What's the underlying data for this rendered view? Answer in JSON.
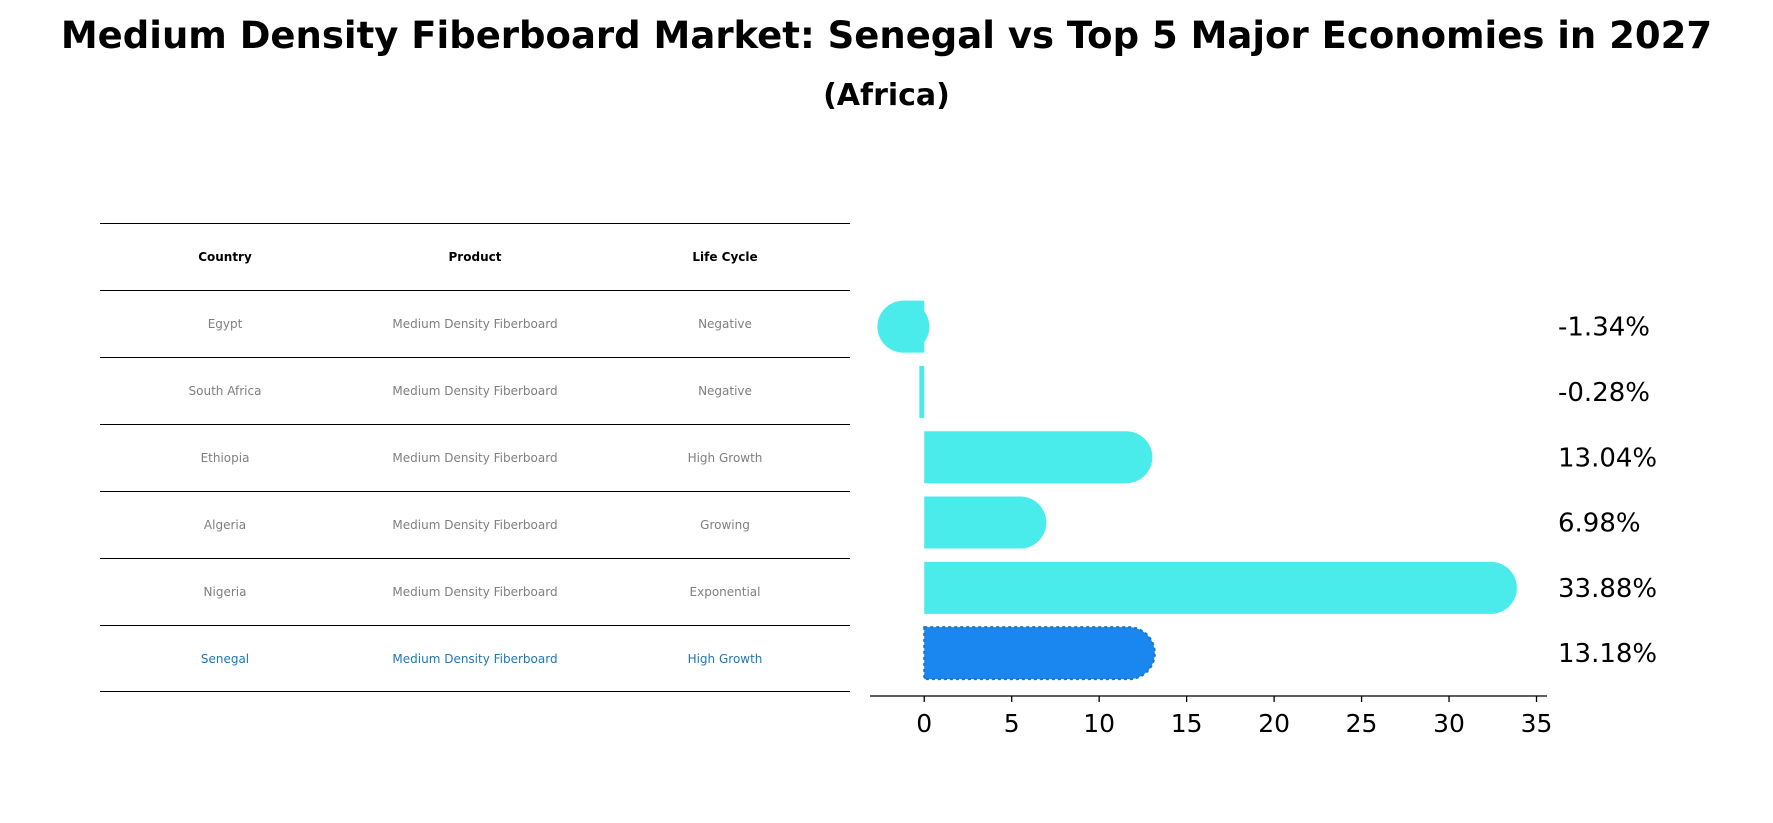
{
  "title": "Medium Density Fiberboard Market: Senegal vs Top 5 Major Economies in 2027",
  "subtitle": "(Africa)",
  "table": {
    "headers": [
      "Country",
      "Product",
      "Life Cycle"
    ],
    "rows": [
      {
        "country": "Egypt",
        "product": "Medium Density Fiberboard",
        "life_cycle": "Negative"
      },
      {
        "country": "South Africa",
        "product": "Medium Density Fiberboard",
        "life_cycle": "Negative"
      },
      {
        "country": "Ethiopia",
        "product": "Medium Density Fiberboard",
        "life_cycle": "High Growth"
      },
      {
        "country": "Algeria",
        "product": "Medium Density Fiberboard",
        "life_cycle": "Growing"
      },
      {
        "country": "Nigeria",
        "product": "Medium Density Fiberboard",
        "life_cycle": "Exponential"
      },
      {
        "country": "Senegal",
        "product": "Medium Density Fiberboard",
        "life_cycle": "High Growth"
      }
    ]
  },
  "colors": {
    "bar": "#4aeceb",
    "highlight_bar": "#1a87f0",
    "highlight_text": "#1f77b4",
    "table_text": "#7f7f7f"
  },
  "chart_data": {
    "type": "bar",
    "orientation": "horizontal",
    "categories": [
      "Egypt",
      "South Africa",
      "Ethiopia",
      "Algeria",
      "Nigeria",
      "Senegal"
    ],
    "values": [
      -1.34,
      -0.28,
      13.04,
      6.98,
      33.88,
      13.18
    ],
    "labels": [
      "-1.34%",
      "-0.28%",
      "13.04%",
      "6.98%",
      "33.88%",
      "13.18%"
    ],
    "highlight": "Senegal",
    "xlim": [
      -3.1,
      35.6
    ],
    "xticks": [
      0,
      5,
      10,
      15,
      20,
      25,
      30,
      35
    ],
    "grid": false
  }
}
